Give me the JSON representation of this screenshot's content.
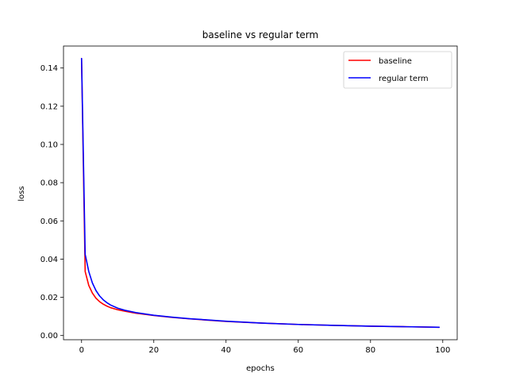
{
  "chart_data": {
    "type": "line",
    "title": "baseline vs regular term",
    "xlabel": "epochs",
    "ylabel": "loss",
    "xlim": [
      -5,
      104
    ],
    "ylim": [
      -0.0022,
      0.1515
    ],
    "x_ticks": [
      0,
      20,
      40,
      60,
      80,
      100
    ],
    "x_tick_labels": [
      "0",
      "20",
      "40",
      "60",
      "80",
      "100"
    ],
    "y_ticks": [
      0.0,
      0.02,
      0.04,
      0.06,
      0.08,
      0.1,
      0.12,
      0.14
    ],
    "y_tick_labels": [
      "0.00",
      "0.02",
      "0.04",
      "0.06",
      "0.08",
      "0.10",
      "0.12",
      "0.14"
    ],
    "grid": false,
    "legend_position": "top-right",
    "series": [
      {
        "name": "baseline",
        "color": "#ff0000",
        "x": [
          0,
          1,
          2,
          3,
          4,
          5,
          6,
          7,
          8,
          10,
          12,
          15,
          20,
          25,
          30,
          40,
          50,
          60,
          70,
          80,
          90,
          99
        ],
        "y": [
          0.145,
          0.0335,
          0.0262,
          0.0222,
          0.0195,
          0.0177,
          0.0164,
          0.0154,
          0.0146,
          0.0135,
          0.0127,
          0.0117,
          0.0105,
          0.0095,
          0.0087,
          0.0074,
          0.0065,
          0.0058,
          0.0053,
          0.0049,
          0.0046,
          0.0043
        ]
      },
      {
        "name": "regular term",
        "color": "#0000ff",
        "x": [
          0,
          1,
          2,
          3,
          4,
          5,
          6,
          7,
          8,
          10,
          12,
          15,
          20,
          25,
          30,
          40,
          50,
          60,
          70,
          80,
          90,
          99
        ],
        "y": [
          0.145,
          0.0425,
          0.0335,
          0.0275,
          0.0235,
          0.0207,
          0.0187,
          0.0172,
          0.016,
          0.0143,
          0.0132,
          0.012,
          0.0106,
          0.0096,
          0.0088,
          0.0075,
          0.0065,
          0.0058,
          0.0053,
          0.0049,
          0.0046,
          0.0043
        ]
      }
    ]
  }
}
